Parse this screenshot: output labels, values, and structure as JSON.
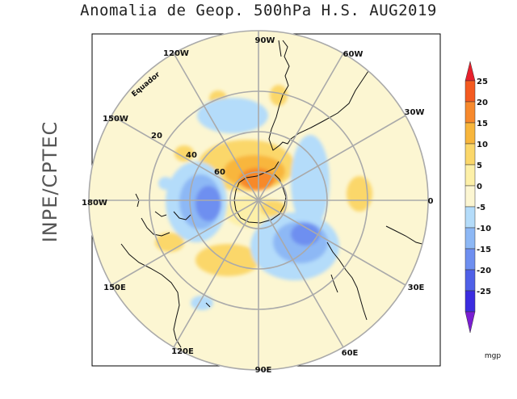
{
  "title": "Anomalia de Geop. 500hPa H.S. AUG2019",
  "side_label": "INPE/CPTEC",
  "map": {
    "projection": "polar-stereographic-south",
    "equator_label": "Equador",
    "longitude_labels": [
      "90W",
      "60W",
      "30W",
      "0",
      "30E",
      "60E",
      "90E",
      "120E",
      "150E",
      "180W",
      "150W",
      "120W"
    ],
    "latitude_labels": [
      "20",
      "40",
      "60"
    ]
  },
  "colorbar": {
    "unit": "mgp",
    "ticks": [
      "25",
      "20",
      "15",
      "10",
      "5",
      "0",
      "-5",
      "-10",
      "-15",
      "-20",
      "-25"
    ],
    "colors": [
      "#f45a20",
      "#f7892c",
      "#f8b63c",
      "#fbd76a",
      "#fdf0a8",
      "#fcf6d2",
      "#b4dcfa",
      "#8db8f5",
      "#6e8ff0",
      "#4f60e8",
      "#3b2ce0"
    ],
    "top_arrow_color": "#e8202c",
    "bottom_arrow_color": "#7a1ed2"
  },
  "colors": {
    "background": "#fcf6d2",
    "grid": "#aaaaaa",
    "coast": "#111111"
  }
}
